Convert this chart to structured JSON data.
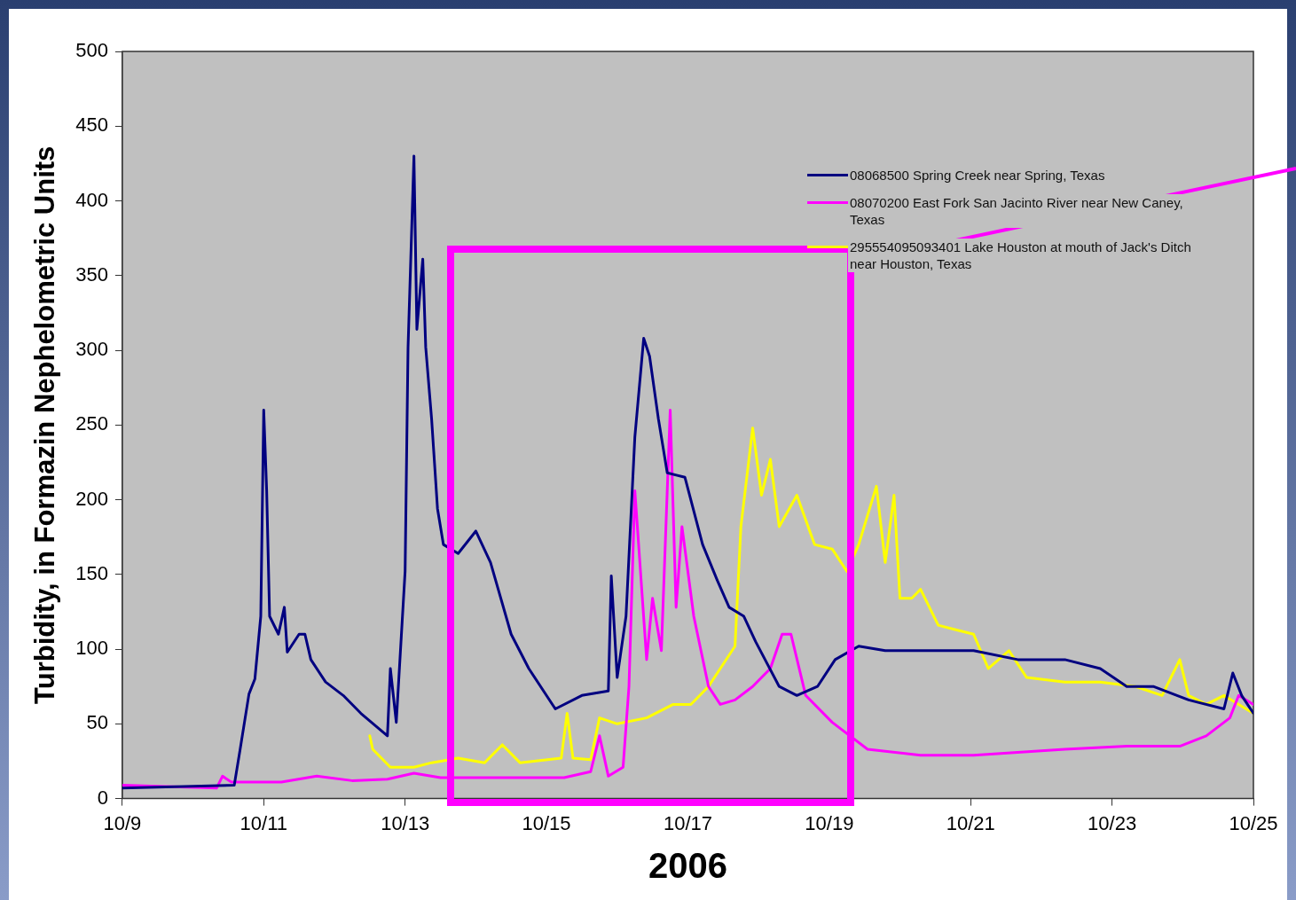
{
  "chart_data": {
    "type": "line",
    "xlabel": "2006",
    "ylabel": "Turbidity, in Formazin Nephelometric Units",
    "xlim": [
      "2006-10-09",
      "2006-10-25"
    ],
    "xticks": [
      {
        "value": "2006-10-09",
        "label": "10/9"
      },
      {
        "value": "2006-10-11",
        "label": "10/11"
      },
      {
        "value": "2006-10-13",
        "label": "10/13"
      },
      {
        "value": "2006-10-15",
        "label": "10/15"
      },
      {
        "value": "2006-10-17",
        "label": "10/17"
      },
      {
        "value": "2006-10-19",
        "label": "10/19"
      },
      {
        "value": "2006-10-21",
        "label": "10/21"
      },
      {
        "value": "2006-10-23",
        "label": "10/23"
      },
      {
        "value": "2006-10-25",
        "label": "10/25"
      }
    ],
    "ylim": [
      0,
      500
    ],
    "yticks": [
      0,
      50,
      100,
      150,
      200,
      250,
      300,
      350,
      400,
      450,
      500
    ],
    "grid": false,
    "legend": "top right",
    "series": [
      {
        "name": "08068500 Spring Creek near Spring, Texas",
        "color": "#000080",
        "x": [
          "2006-10-09T00:00",
          "2006-10-10T14:00",
          "2006-10-10T16:00",
          "2006-10-10T19:00",
          "2006-10-10T21:00",
          "2006-10-10T23:00",
          "2006-10-11T00:00",
          "2006-10-11T01:00",
          "2006-10-11T02:00",
          "2006-10-11T05:00",
          "2006-10-11T07:00",
          "2006-10-11T08:00",
          "2006-10-11T12:00",
          "2006-10-11T14:00",
          "2006-10-11T16:00",
          "2006-10-11T21:00",
          "2006-10-12T03:00",
          "2006-10-12T09:00",
          "2006-10-12T18:00",
          "2006-10-12T19:00",
          "2006-10-12T21:00",
          "2006-10-13T00:00",
          "2006-10-13T01:00",
          "2006-10-13T03:00",
          "2006-10-13T04:00",
          "2006-10-13T06:00",
          "2006-10-13T07:00",
          "2006-10-13T09:00",
          "2006-10-13T11:00",
          "2006-10-13T13:00",
          "2006-10-13T18:00",
          "2006-10-14T00:00",
          "2006-10-14T05:00",
          "2006-10-14T12:00",
          "2006-10-14T18:00",
          "2006-10-15T03:00",
          "2006-10-15T12:00",
          "2006-10-15T21:00",
          "2006-10-15T22:00",
          "2006-10-16T00:00",
          "2006-10-16T03:00",
          "2006-10-16T06:00",
          "2006-10-16T09:00",
          "2006-10-16T11:00",
          "2006-10-16T14:00",
          "2006-10-16T17:00",
          "2006-10-16T23:00",
          "2006-10-17T05:00",
          "2006-10-17T10:00",
          "2006-10-17T14:00",
          "2006-10-17T19:00",
          "2006-10-17T23:00",
          "2006-10-18T07:00",
          "2006-10-18T13:00",
          "2006-10-18T20:00",
          "2006-10-19T02:00",
          "2006-10-19T10:00",
          "2006-10-19T19:00",
          "2006-10-20T10:00",
          "2006-10-21T01:00",
          "2006-10-21T16:00",
          "2006-10-22T08:00",
          "2006-10-22T20:00",
          "2006-10-23T05:00",
          "2006-10-23T14:00",
          "2006-10-24T02:00",
          "2006-10-24T14:00",
          "2006-10-24T17:00",
          "2006-10-24T20:00",
          "2006-10-25T00:00"
        ],
        "values": [
          7,
          9,
          33,
          70,
          80,
          122,
          260,
          206,
          122,
          110,
          128,
          98,
          110,
          110,
          93,
          78,
          69,
          57,
          42,
          87,
          51,
          152,
          302,
          430,
          314,
          361,
          302,
          254,
          194,
          170,
          164,
          179,
          158,
          110,
          87,
          60,
          69,
          72,
          149,
          81,
          122,
          242,
          308,
          296,
          254,
          218,
          215,
          170,
          146,
          128,
          122,
          105,
          75,
          69,
          75,
          93,
          102,
          99,
          99,
          99,
          93,
          93,
          87,
          75,
          75,
          66,
          60,
          84,
          69,
          57
        ]
      },
      {
        "name": "08070200 East Fork San Jacinto River near New Caney, Texas",
        "color": "#ff00ff",
        "x": [
          "2006-10-09T00:00",
          "2006-10-10T08:00",
          "2006-10-10T10:00",
          "2006-10-10T13:00",
          "2006-10-11T06:00",
          "2006-10-11T18:00",
          "2006-10-12T06:00",
          "2006-10-12T18:00",
          "2006-10-13T03:00",
          "2006-10-13T12:00",
          "2006-10-14T06:00",
          "2006-10-15T06:00",
          "2006-10-15T15:00",
          "2006-10-15T18:00",
          "2006-10-15T21:00",
          "2006-10-16T02:00",
          "2006-10-16T04:00",
          "2006-10-16T06:00",
          "2006-10-16T10:00",
          "2006-10-16T12:00",
          "2006-10-16T15:00",
          "2006-10-16T18:00",
          "2006-10-16T20:00",
          "2006-10-16T22:00",
          "2006-10-17T02:00",
          "2006-10-17T07:00",
          "2006-10-17T11:00",
          "2006-10-17T16:00",
          "2006-10-17T22:00",
          "2006-10-18T04:00",
          "2006-10-18T08:00",
          "2006-10-18T11:00",
          "2006-10-18T16:00",
          "2006-10-19T01:00",
          "2006-10-19T13:00",
          "2006-10-20T07:00",
          "2006-10-21T01:00",
          "2006-10-22T08:00",
          "2006-10-23T05:00",
          "2006-10-23T23:00",
          "2006-10-24T08:00",
          "2006-10-24T16:00",
          "2006-10-24T19:00",
          "2006-10-25T00:00"
        ],
        "values": [
          9,
          7,
          15,
          11,
          11,
          15,
          12,
          13,
          17,
          14,
          14,
          14,
          18,
          42,
          15,
          21,
          75,
          206,
          93,
          134,
          99,
          260,
          128,
          182,
          122,
          75,
          63,
          66,
          75,
          87,
          110,
          110,
          69,
          51,
          33,
          29,
          29,
          33,
          35,
          35,
          42,
          54,
          69,
          63
        ]
      },
      {
        "name": "295554095093401 Lake Houston at mouth of Jack's Ditch near Houston, Texas",
        "color": "#ffff00",
        "x": [
          "2006-10-12T12:00",
          "2006-10-12T13:00",
          "2006-10-12T19:00",
          "2006-10-13T03:00",
          "2006-10-13T09:00",
          "2006-10-13T18:00",
          "2006-10-14T03:00",
          "2006-10-14T09:00",
          "2006-10-14T15:00",
          "2006-10-15T05:00",
          "2006-10-15T07:00",
          "2006-10-15T09:00",
          "2006-10-15T15:00",
          "2006-10-15T18:00",
          "2006-10-16T00:00",
          "2006-10-16T10:00",
          "2006-10-16T19:00",
          "2006-10-17T01:00",
          "2006-10-17T07:00",
          "2006-10-17T11:00",
          "2006-10-17T16:00",
          "2006-10-17T18:00",
          "2006-10-17T22:00",
          "2006-10-18T01:00",
          "2006-10-18T04:00",
          "2006-10-18T07:00",
          "2006-10-18T13:00",
          "2006-10-18T19:00",
          "2006-10-19T01:00",
          "2006-10-19T06:00",
          "2006-10-19T10:00",
          "2006-10-19T16:00",
          "2006-10-19T19:00",
          "2006-10-19T22:00",
          "2006-10-20T00:00",
          "2006-10-20T04:00",
          "2006-10-20T07:00",
          "2006-10-20T13:00",
          "2006-10-20T19:00",
          "2006-10-21T01:00",
          "2006-10-21T06:00",
          "2006-10-21T13:00",
          "2006-10-21T19:00",
          "2006-10-22T08:00",
          "2006-10-22T20:00",
          "2006-10-23T08:00",
          "2006-10-23T17:00",
          "2006-10-23T23:00",
          "2006-10-24T02:00",
          "2006-10-24T08:00",
          "2006-10-24T14:00",
          "2006-10-24T19:00",
          "2006-10-25T00:00"
        ],
        "values": [
          42,
          33,
          21,
          21,
          24,
          27,
          24,
          36,
          24,
          27,
          57,
          27,
          26,
          54,
          50,
          54,
          63,
          63,
          75,
          87,
          102,
          182,
          248,
          203,
          227,
          182,
          203,
          170,
          167,
          152,
          170,
          209,
          158,
          203,
          134,
          134,
          140,
          116,
          113,
          110,
          87,
          99,
          81,
          78,
          78,
          75,
          69,
          93,
          69,
          63,
          69,
          63,
          57
        ]
      }
    ]
  }
}
